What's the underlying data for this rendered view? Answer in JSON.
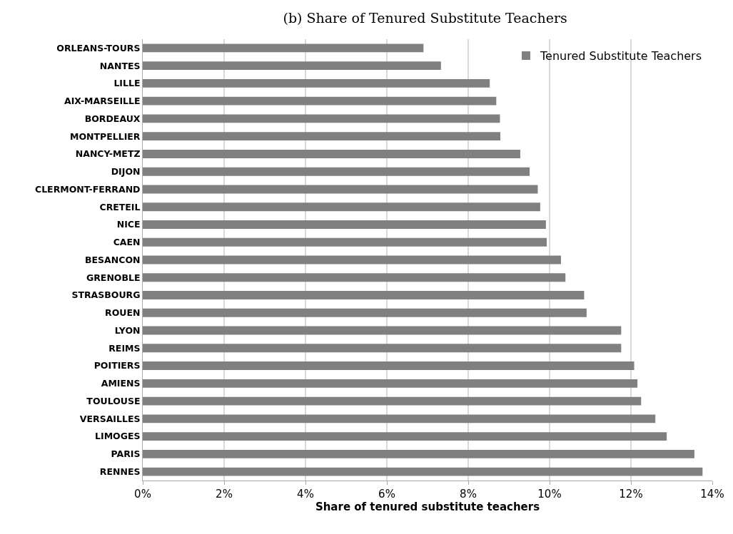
{
  "chart_data": {
    "type": "bar",
    "orientation": "horizontal",
    "title": "(b) Share of Tenured Substitute Teachers",
    "xlabel": "Share of tenured substitute teachers",
    "categories": [
      "ORLEANS-TOURS",
      "NANTES",
      "LILLE",
      "AIX-MARSEILLE",
      "BORDEAUX",
      "MONTPELLIER",
      "NANCY-METZ",
      "DIJON",
      "CLERMONT-FERRAND",
      "CRETEIL",
      "NICE",
      "CAEN",
      "BESANCON",
      "GRENOBLE",
      "STRASBOURG",
      "ROUEN",
      "LYON",
      "REIMS",
      "POITIERS",
      "AMIENS",
      "TOULOUSE",
      "VERSAILLES",
      "LIMOGES",
      "PARIS",
      "RENNES"
    ],
    "series": [
      {
        "name": "Tenured Substitute Teachers",
        "color": "#808080",
        "values": [
          6.9,
          7.33,
          8.53,
          8.69,
          8.78,
          8.79,
          9.28,
          9.51,
          9.71,
          9.77,
          9.91,
          9.93,
          10.28,
          10.39,
          10.85,
          10.91,
          11.76,
          11.76,
          12.08,
          12.16,
          12.25,
          12.6,
          12.88,
          13.56,
          13.76
        ]
      }
    ],
    "xlim": [
      0,
      14
    ],
    "xticks": [
      {
        "value": 0,
        "label": "0%"
      },
      {
        "value": 2,
        "label": "2%"
      },
      {
        "value": 4,
        "label": "4%"
      },
      {
        "value": 6,
        "label": "6%"
      },
      {
        "value": 8,
        "label": "8%"
      },
      {
        "value": 10,
        "label": "10%"
      },
      {
        "value": 12,
        "label": "12%"
      },
      {
        "value": 14,
        "label": "14%"
      }
    ],
    "grid": "x",
    "legend": "top right"
  }
}
